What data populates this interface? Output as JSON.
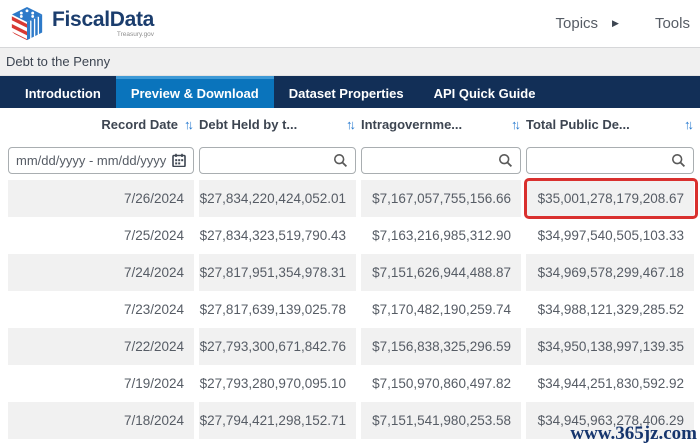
{
  "brand": {
    "name": "FiscalData",
    "sub": "Treasury.gov"
  },
  "nav": {
    "topics": "Topics",
    "tools": "Tools"
  },
  "breadcrumb": "Debt to the Penny",
  "tabs": [
    {
      "label": "Introduction",
      "active": false
    },
    {
      "label": "Preview & Download",
      "active": true
    },
    {
      "label": "Dataset Properties",
      "active": false
    },
    {
      "label": "API Quick Guide",
      "active": false
    }
  ],
  "table": {
    "columns": [
      "Record Date",
      "Debt Held by t...",
      "Intragovernme...",
      "Total Public De..."
    ],
    "filters": {
      "date_placeholder": "mm/dd/yyyy - mm/dd/yyyy"
    },
    "rows": [
      [
        "7/26/2024",
        "$27,834,220,424,052.01",
        "$7,167,057,755,156.66",
        "$35,001,278,179,208.67"
      ],
      [
        "7/25/2024",
        "$27,834,323,519,790.43",
        "$7,163,216,985,312.90",
        "$34,997,540,505,103.33"
      ],
      [
        "7/24/2024",
        "$27,817,951,354,978.31",
        "$7,151,626,944,488.87",
        "$34,969,578,299,467.18"
      ],
      [
        "7/23/2024",
        "$27,817,639,139,025.78",
        "$7,170,482,190,259.74",
        "$34,988,121,329,285.52"
      ],
      [
        "7/22/2024",
        "$27,793,300,671,842.76",
        "$7,156,838,325,296.59",
        "$34,950,138,997,139.35"
      ],
      [
        "7/19/2024",
        "$27,793,280,970,095.10",
        "$7,150,970,860,497.82",
        "$34,944,251,830,592.92"
      ],
      [
        "7/18/2024",
        "$27,794,421,298,152.71",
        "$7,151,541,980,253.58",
        "$34,945,963,278,406.29"
      ]
    ],
    "highlight": {
      "row": 0,
      "col": 3,
      "color": "#d9302e"
    }
  },
  "watermark": "www.365jz.com",
  "colors": {
    "tabbar_navy": "#122f57",
    "active_tab_blue": "#0a74bc",
    "sort_icon_blue": "#2478ce",
    "stripe_gray": "#f1f1f1",
    "highlight_red": "#d9302e",
    "logo_navy": "#1b3d6d",
    "logo_red": "#d83933",
    "logo_blue": "#2d7ac9"
  }
}
